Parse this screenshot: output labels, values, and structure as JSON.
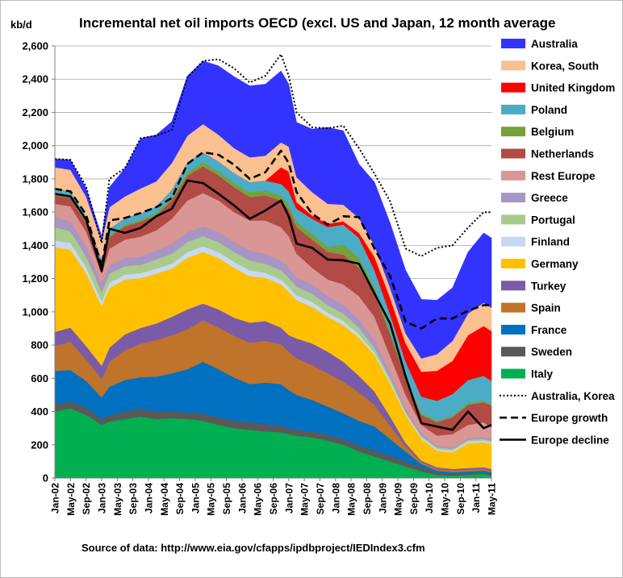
{
  "chart_data": {
    "type": "area",
    "title": "Incremental net oil imports OECD (excl. US and Japan,  12 month average",
    "unit_label": "kb/d",
    "ylim": [
      0,
      2600
    ],
    "yticks": [
      0,
      200,
      400,
      600,
      800,
      1000,
      1200,
      1400,
      1600,
      1800,
      2000,
      2200,
      2400,
      2600
    ],
    "ytick_labels": [
      "0",
      "200",
      "400",
      "600",
      "800",
      "1,000",
      "1,200",
      "1,400",
      "1,600",
      "1,800",
      "2,000",
      "2,200",
      "2,400",
      "2,600"
    ],
    "xtick_labels": [
      "Jan-02",
      "May-02",
      "Sep-02",
      "Jan-03",
      "May-03",
      "Sep-03",
      "Jan-04",
      "May-04",
      "Sep-04",
      "Jan-05",
      "May-05",
      "Sep-05",
      "Jan-06",
      "May-06",
      "Sep-06",
      "Jan-07",
      "May-07",
      "Sep-07",
      "Jan-08",
      "May-08",
      "Sep-08",
      "Jan-09",
      "May-09",
      "Sep-09",
      "Jan-10",
      "May-10",
      "Sep-10",
      "Jan-11",
      "May-11"
    ],
    "grid": true,
    "legend_position": "right",
    "source": "Source of data: http://www.eia.gov/cfapps/ipdbproject/IEDIndex3.cfm",
    "x_anchor_dates": [
      "Jan-02",
      "May-02",
      "Sep-02",
      "Jan-03",
      "Mar-03",
      "Jul-03",
      "Nov-03",
      "Mar-04",
      "Jul-04",
      "Nov-04",
      "Mar-05",
      "Jul-05",
      "Nov-05",
      "Mar-06",
      "Jul-06",
      "Nov-06",
      "Jan-07",
      "Mar-07",
      "Jul-07",
      "Nov-07",
      "Mar-08",
      "Jul-08",
      "Nov-08",
      "Mar-09",
      "Jul-09",
      "Nov-09",
      "Mar-10",
      "Jul-10",
      "Nov-10",
      "Mar-11",
      "May-11"
    ],
    "series": [
      {
        "name": "Italy",
        "color": "#00B050",
        "values": [
          400,
          420,
          380,
          320,
          340,
          355,
          370,
          355,
          360,
          355,
          345,
          320,
          300,
          290,
          280,
          275,
          265,
          255,
          245,
          225,
          200,
          160,
          130,
          100,
          70,
          40,
          20,
          15,
          20,
          25,
          15
        ]
      },
      {
        "name": "Sweden",
        "color": "#595959",
        "values": [
          45,
          40,
          45,
          35,
          40,
          45,
          48,
          45,
          40,
          40,
          45,
          45,
          45,
          45,
          45,
          40,
          35,
          35,
          35,
          35,
          35,
          35,
          35,
          35,
          30,
          25,
          15,
          10,
          10,
          10,
          10
        ]
      },
      {
        "name": "France",
        "color": "#0070C0",
        "values": [
          200,
          190,
          160,
          130,
          170,
          190,
          190,
          210,
          230,
          260,
          310,
          290,
          260,
          230,
          250,
          250,
          230,
          210,
          190,
          170,
          155,
          150,
          145,
          100,
          60,
          20,
          10,
          10,
          10,
          10,
          10
        ]
      },
      {
        "name": "Spain",
        "color": "#C0732A",
        "values": [
          150,
          170,
          130,
          110,
          150,
          180,
          200,
          220,
          230,
          240,
          250,
          250,
          250,
          250,
          250,
          240,
          230,
          220,
          210,
          200,
          190,
          170,
          130,
          80,
          30,
          10,
          10,
          10,
          10,
          10,
          10
        ]
      },
      {
        "name": "Turkey",
        "color": "#7A5BA8",
        "values": [
          85,
          85,
          80,
          80,
          85,
          95,
          95,
          100,
          110,
          120,
          100,
          110,
          110,
          120,
          120,
          100,
          100,
          120,
          130,
          130,
          120,
          100,
          80,
          55,
          20,
          10,
          10,
          10,
          10,
          10,
          10
        ]
      },
      {
        "name": "Germany",
        "color": "#FFC000",
        "values": [
          510,
          470,
          440,
          360,
          360,
          330,
          300,
          300,
          290,
          310,
          310,
          310,
          300,
          280,
          260,
          260,
          260,
          230,
          220,
          210,
          220,
          230,
          220,
          200,
          170,
          130,
          100,
          100,
          150,
          150,
          150
        ]
      },
      {
        "name": "Finland",
        "color": "#C6D9F1",
        "values": [
          40,
          40,
          35,
          30,
          30,
          30,
          30,
          30,
          30,
          35,
          35,
          35,
          35,
          35,
          30,
          30,
          30,
          30,
          30,
          25,
          25,
          20,
          15,
          15,
          10,
          10,
          10,
          10,
          10,
          10,
          10
        ]
      },
      {
        "name": "Portugal",
        "color": "#A9CB8C",
        "values": [
          80,
          70,
          65,
          55,
          55,
          50,
          50,
          55,
          60,
          60,
          60,
          60,
          60,
          60,
          55,
          55,
          55,
          50,
          50,
          45,
          45,
          40,
          30,
          20,
          10,
          10,
          10,
          10,
          10,
          10,
          10
        ]
      },
      {
        "name": "Greece",
        "color": "#A895C4",
        "values": [
          60,
          60,
          60,
          50,
          50,
          50,
          50,
          55,
          60,
          60,
          60,
          60,
          60,
          60,
          60,
          60,
          60,
          60,
          55,
          55,
          55,
          50,
          45,
          30,
          20,
          15,
          10,
          10,
          10,
          10,
          10
        ]
      },
      {
        "name": "Rest Europe",
        "color": "#D99694",
        "values": [
          80,
          90,
          90,
          60,
          100,
          110,
          120,
          120,
          150,
          190,
          200,
          190,
          180,
          180,
          200,
          200,
          190,
          140,
          100,
          100,
          120,
          140,
          140,
          100,
          80,
          50,
          60,
          80,
          80,
          90,
          70
        ]
      },
      {
        "name": "Netherlands",
        "color": "#B24A46",
        "values": [
          50,
          50,
          50,
          45,
          70,
          80,
          90,
          90,
          110,
          150,
          160,
          150,
          150,
          140,
          150,
          160,
          160,
          160,
          170,
          165,
          180,
          170,
          140,
          130,
          100,
          60,
          80,
          100,
          120,
          120,
          130
        ]
      },
      {
        "name": "Belgium",
        "color": "#78A03A",
        "values": [
          10,
          10,
          10,
          10,
          10,
          10,
          10,
          15,
          15,
          20,
          25,
          25,
          25,
          30,
          30,
          30,
          30,
          30,
          35,
          30,
          60,
          60,
          40,
          20,
          10,
          10,
          10,
          10,
          10,
          10,
          10
        ]
      },
      {
        "name": "Poland",
        "color": "#4BACC6",
        "values": [
          30,
          30,
          30,
          30,
          40,
          40,
          40,
          40,
          50,
          60,
          60,
          60,
          60,
          60,
          60,
          70,
          80,
          80,
          90,
          120,
          120,
          120,
          100,
          100,
          90,
          100,
          120,
          130,
          140,
          150,
          140
        ]
      },
      {
        "name": "United Kingdom",
        "color": "#FF0000",
        "values": [
          0,
          0,
          0,
          0,
          0,
          0,
          0,
          0,
          0,
          0,
          0,
          0,
          0,
          0,
          0,
          100,
          120,
          40,
          20,
          20,
          20,
          30,
          80,
          100,
          110,
          150,
          180,
          200,
          270,
          300,
          300
        ]
      },
      {
        "name": "Korea, South",
        "color": "#FAC090",
        "values": [
          130,
          130,
          120,
          110,
          130,
          130,
          150,
          150,
          160,
          160,
          170,
          160,
          150,
          150,
          150,
          150,
          150,
          150,
          140,
          120,
          100,
          90,
          70,
          60,
          60,
          80,
          100,
          120,
          130,
          140,
          140
        ]
      },
      {
        "name": "Australia",
        "color": "#3333FF",
        "values": [
          50,
          60,
          50,
          30,
          120,
          170,
          300,
          280,
          250,
          360,
          380,
          415,
          430,
          430,
          430,
          430,
          375,
          330,
          380,
          460,
          445,
          325,
          380,
          390,
          380,
          355,
          325,
          320,
          370,
          420,
          420
        ]
      }
    ],
    "lines": [
      {
        "name": "Australia, Korea",
        "style": "dotted",
        "values": [
          1920,
          1915,
          1755,
          1415,
          1800,
          1865,
          2045,
          2060,
          2095,
          2410,
          2510,
          2520,
          2465,
          2380,
          2420,
          2550,
          2420,
          2200,
          2110,
          2105,
          2120,
          1985,
          1830,
          1665,
          1380,
          1335,
          1385,
          1400,
          1507,
          1600,
          1600
        ]
      },
      {
        "name": "Europe growth",
        "style": "dashed",
        "values": [
          1740,
          1725,
          1585,
          1275,
          1550,
          1565,
          1595,
          1630,
          1685,
          1890,
          1960,
          1945,
          1885,
          1800,
          1840,
          1970,
          1895,
          1720,
          1590,
          1525,
          1575,
          1570,
          1380,
          1215,
          940,
          900,
          960,
          960,
          1007,
          1040,
          1040
        ]
      },
      {
        "name": "Europe decline",
        "style": "solid",
        "values": [
          1710,
          1695,
          1555,
          1245,
          1500,
          1475,
          1505,
          1575,
          1620,
          1790,
          1775,
          1710,
          1640,
          1560,
          1610,
          1670,
          1575,
          1410,
          1385,
          1315,
          1310,
          1290,
          1110,
          930,
          610,
          330,
          310,
          290,
          400,
          300,
          320
        ]
      }
    ]
  }
}
